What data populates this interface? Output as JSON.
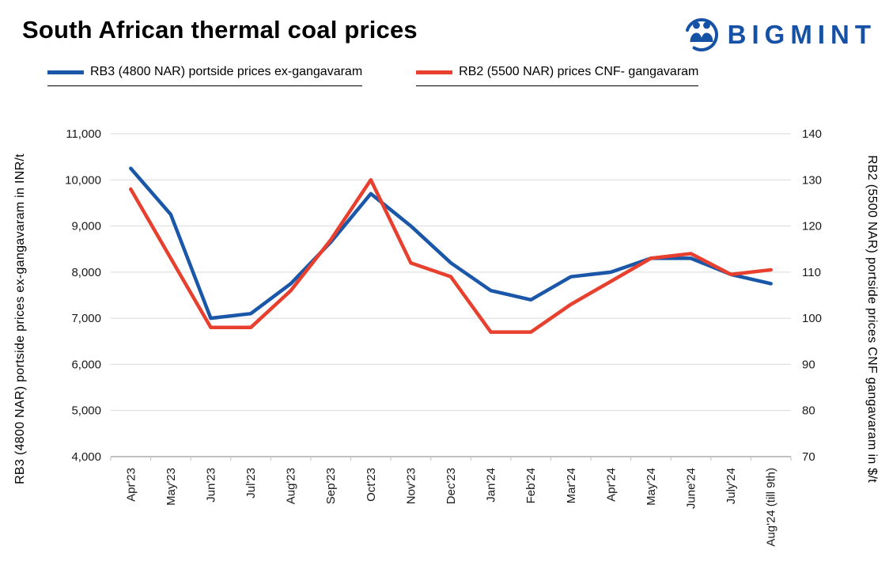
{
  "logo": {
    "text": "BIGMINT",
    "color": "#1551a4"
  },
  "chart_data": {
    "type": "line",
    "title": "South African thermal coal prices",
    "categories": [
      "Apr'23",
      "May'23",
      "Jun'23",
      "Jul'23",
      "Aug'23",
      "Sep'23",
      "Oct'23",
      "Nov'23",
      "Dec'23",
      "Jan'24",
      "Feb'24",
      "Mar'24",
      "Apr'24",
      "May'24",
      "June'24",
      "July'24",
      "Aug'24 (till 9th)"
    ],
    "series": [
      {
        "name": "RB3 (4800 NAR) portside prices ex-gangavaram",
        "axis": "left",
        "unit": "INR/t",
        "color": "#1a57a8",
        "values": [
          10250,
          9250,
          7000,
          7100,
          7750,
          8650,
          9700,
          9000,
          8200,
          7600,
          7400,
          7900,
          8000,
          8300,
          8300,
          7950,
          7750
        ]
      },
      {
        "name": "RB2 (5500 NAR) prices CNF- gangavaram",
        "axis": "right",
        "unit": "$/t",
        "color": "#e8402f",
        "values": [
          128,
          113,
          98,
          98,
          106,
          117,
          130,
          112,
          109,
          97,
          97,
          103,
          108,
          113,
          114,
          109.5,
          110.5
        ]
      }
    ],
    "left_axis": {
      "label": "RB3 (4800 NAR) portside prices ex-gangavaram  in INR/t",
      "min": 4000,
      "max": 11000,
      "step": 1000
    },
    "right_axis": {
      "label": "RB2 (5500 NAR) portside prices CNF  gangavaram  in $/t",
      "min": 70,
      "max": 140,
      "step": 10
    },
    "grid": true,
    "legend_position": "top"
  }
}
